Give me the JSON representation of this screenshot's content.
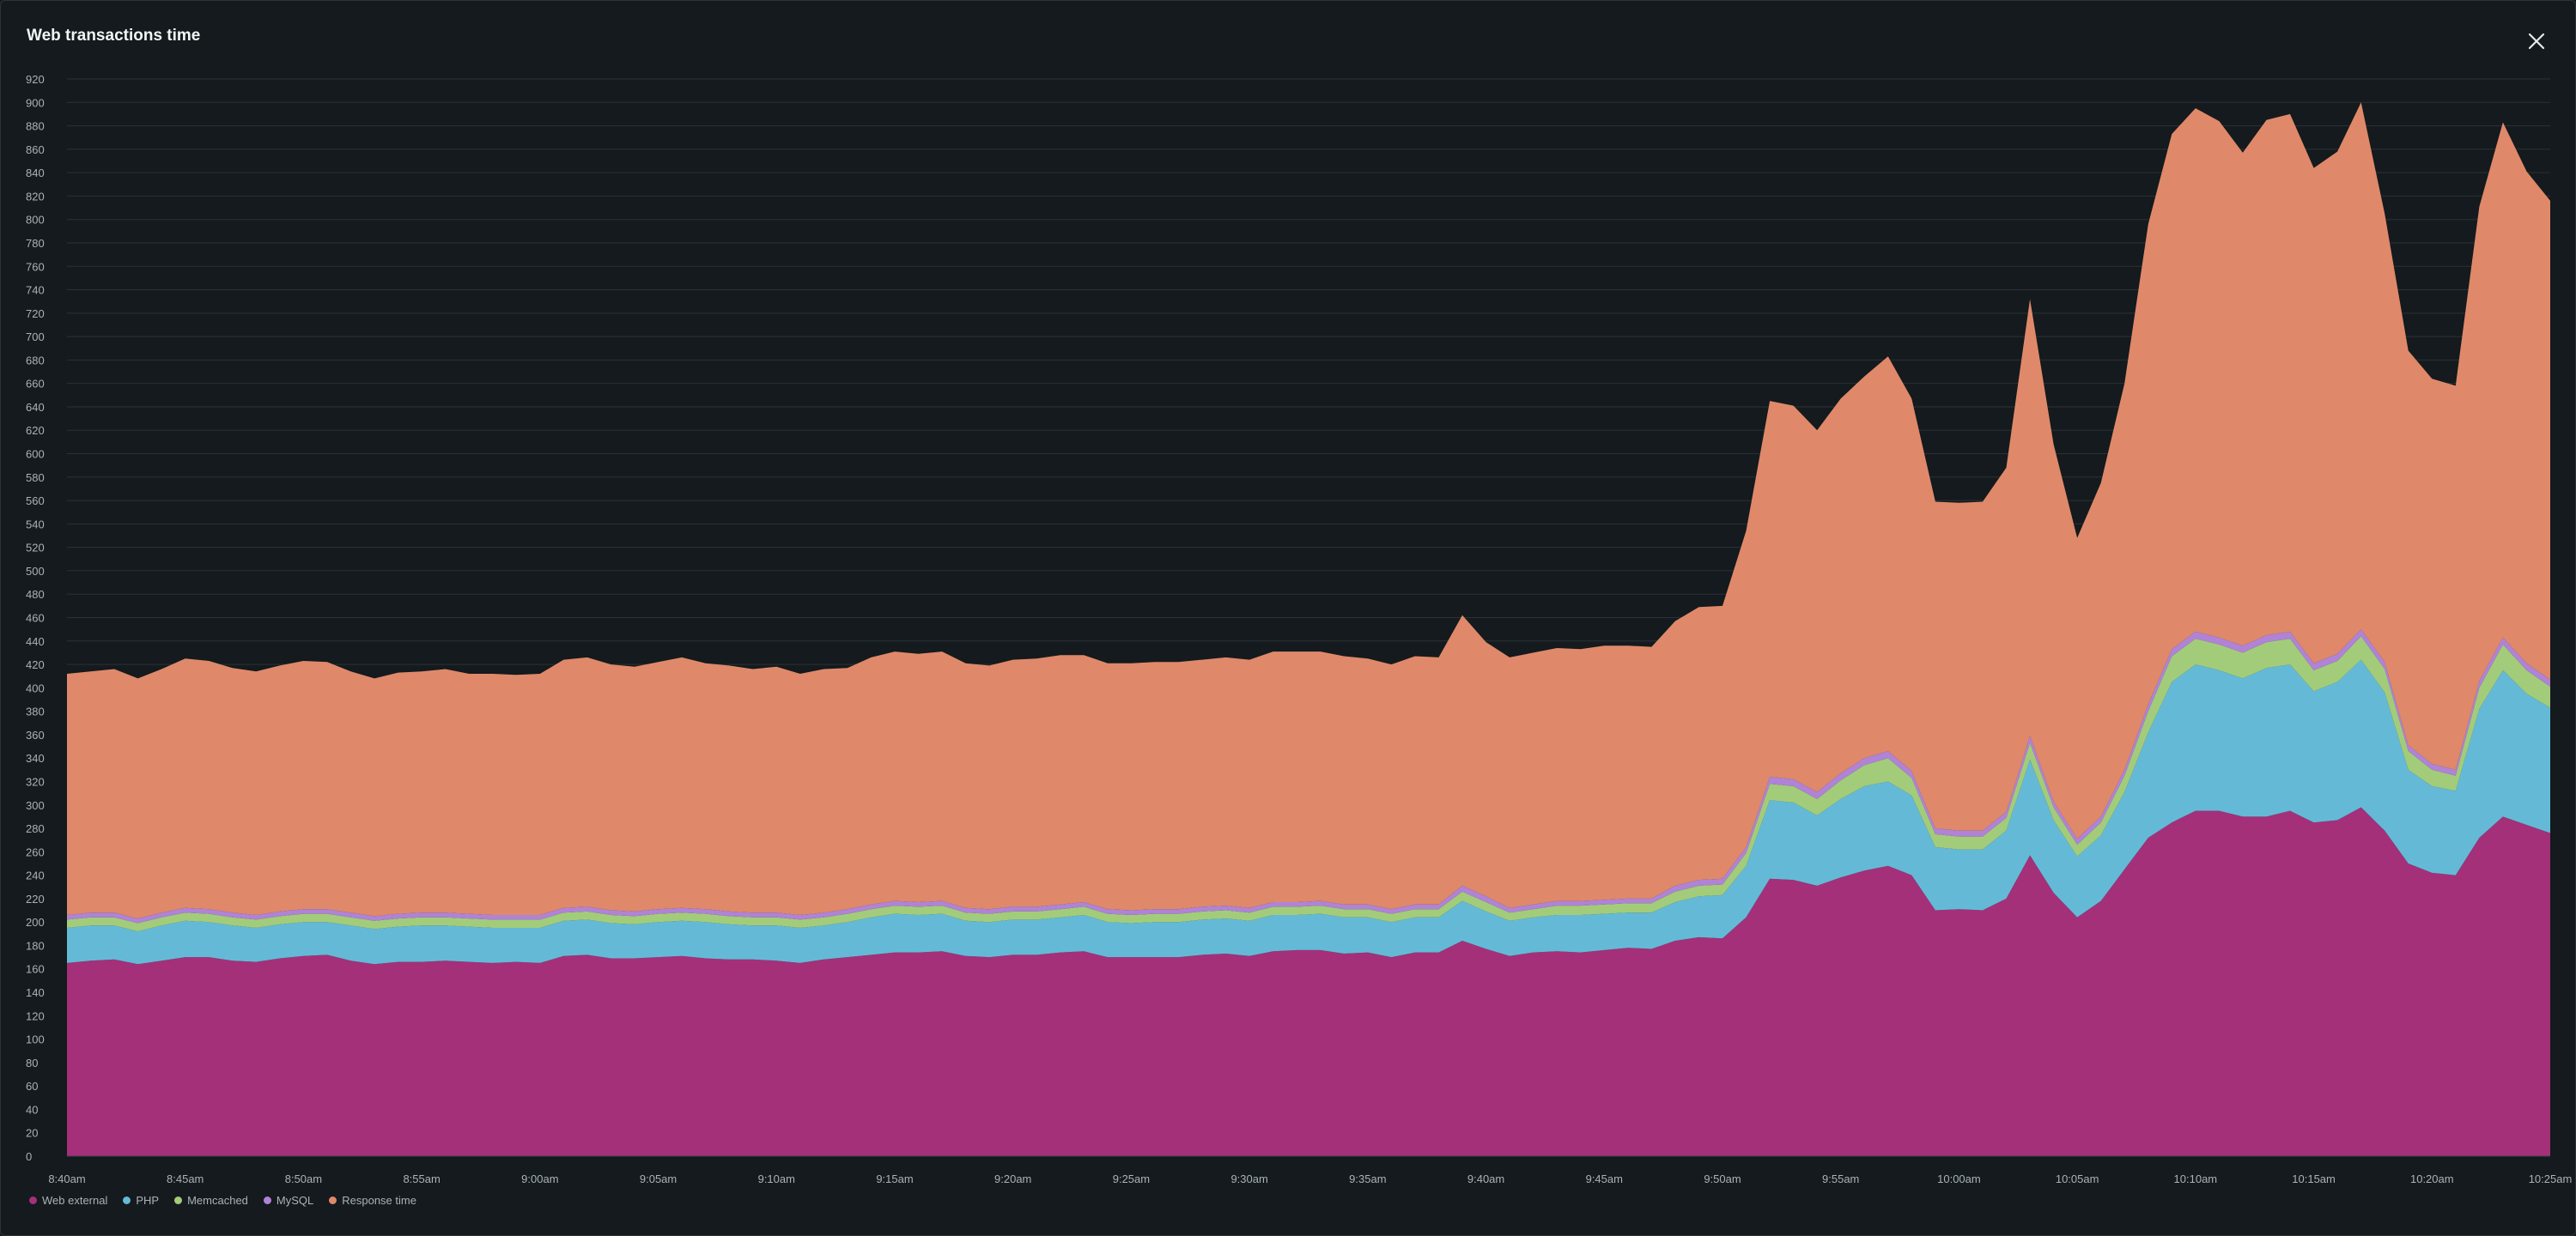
{
  "window": {
    "title": "Web transactions time"
  },
  "close_icon": "close-icon",
  "colors": {
    "background": "#141a1d",
    "grid": "#2b3236",
    "axis_text": "#aab3b7",
    "web_external": "#a4307a",
    "php": "#64bad6",
    "memcached": "#a3cc7a",
    "mysql": "#b083d6",
    "response_time": "#df896a"
  },
  "chart_data": {
    "type": "area",
    "stacked": true,
    "title": "Web transactions time",
    "xlabel": "",
    "ylabel": "",
    "ylim": [
      0,
      920
    ],
    "y_ticks": [
      0,
      20,
      40,
      60,
      80,
      100,
      120,
      140,
      160,
      180,
      200,
      220,
      240,
      260,
      280,
      300,
      320,
      340,
      360,
      380,
      400,
      420,
      440,
      460,
      480,
      500,
      520,
      540,
      560,
      580,
      600,
      620,
      640,
      660,
      680,
      700,
      720,
      740,
      760,
      780,
      800,
      820,
      840,
      860,
      880,
      900,
      920
    ],
    "x_start_minutes": 0,
    "x_step_minutes": 1,
    "x_ticks": [
      {
        "label": "8:40am",
        "minute": 0
      },
      {
        "label": "8:45am",
        "minute": 5
      },
      {
        "label": "8:50am",
        "minute": 10
      },
      {
        "label": "8:55am",
        "minute": 15
      },
      {
        "label": "9:00am",
        "minute": 20
      },
      {
        "label": "9:05am",
        "minute": 25
      },
      {
        "label": "9:10am",
        "minute": 30
      },
      {
        "label": "9:15am",
        "minute": 35
      },
      {
        "label": "9:20am",
        "minute": 40
      },
      {
        "label": "9:25am",
        "minute": 45
      },
      {
        "label": "9:30am",
        "minute": 50
      },
      {
        "label": "9:35am",
        "minute": 55
      },
      {
        "label": "9:40am",
        "minute": 60
      },
      {
        "label": "9:45am",
        "minute": 65
      },
      {
        "label": "9:50am",
        "minute": 70
      },
      {
        "label": "9:55am",
        "minute": 75
      },
      {
        "label": "10:00am",
        "minute": 80
      },
      {
        "label": "10:05am",
        "minute": 85
      },
      {
        "label": "10:10am",
        "minute": 90
      },
      {
        "label": "10:15am",
        "minute": 95
      },
      {
        "label": "10:20am",
        "minute": 100
      },
      {
        "label": "10:25am",
        "minute": 105
      }
    ],
    "legend_position": "bottom-left",
    "series": [
      {
        "name": "Web external",
        "color": "#a4307a",
        "values": [
          165,
          167,
          168,
          164,
          167,
          170,
          170,
          167,
          166,
          169,
          171,
          172,
          167,
          164,
          166,
          166,
          167,
          166,
          165,
          166,
          165,
          171,
          172,
          169,
          169,
          170,
          171,
          169,
          168,
          168,
          167,
          165,
          168,
          170,
          172,
          174,
          174,
          175,
          171,
          170,
          172,
          172,
          174,
          175,
          170,
          170,
          170,
          170,
          172,
          173,
          171,
          175,
          176,
          176,
          173,
          174,
          170,
          174,
          174,
          184,
          177,
          171,
          174,
          175,
          174,
          176,
          178,
          177,
          184,
          187,
          186,
          204,
          237,
          236,
          231,
          238,
          244,
          248,
          240,
          210,
          211,
          210,
          220,
          257,
          225,
          204,
          218,
          245,
          272,
          285,
          295,
          295,
          290,
          290,
          295,
          285,
          287,
          298,
          278,
          250,
          242,
          240,
          272,
          290,
          283,
          276
        ]
      },
      {
        "name": "PHP",
        "color": "#64bad6",
        "values": [
          30,
          30,
          29,
          28,
          30,
          31,
          30,
          30,
          29,
          29,
          29,
          28,
          30,
          30,
          30,
          31,
          30,
          30,
          30,
          29,
          30,
          30,
          30,
          30,
          29,
          30,
          30,
          31,
          30,
          29,
          30,
          30,
          29,
          30,
          32,
          33,
          32,
          32,
          30,
          30,
          30,
          30,
          30,
          31,
          30,
          29,
          30,
          30,
          30,
          30,
          30,
          31,
          30,
          31,
          31,
          30,
          30,
          30,
          30,
          34,
          32,
          30,
          30,
          31,
          32,
          31,
          30,
          31,
          33,
          35,
          37,
          44,
          67,
          66,
          60,
          67,
          72,
          72,
          68,
          54,
          51,
          52,
          58,
          82,
          62,
          52,
          56,
          66,
          90,
          120,
          125,
          120,
          118,
          127,
          125,
          112,
          118,
          126,
          118,
          80,
          74,
          72,
          110,
          125,
          112,
          107
        ]
      },
      {
        "name": "Memcached",
        "color": "#a3cc7a",
        "values": [
          7,
          7,
          7,
          7,
          7,
          7,
          7,
          7,
          7,
          7,
          7,
          7,
          7,
          7,
          7,
          7,
          7,
          7,
          7,
          7,
          7,
          7,
          7,
          7,
          7,
          7,
          7,
          7,
          7,
          7,
          7,
          7,
          7,
          7,
          7,
          7,
          7,
          7,
          7,
          7,
          7,
          7,
          7,
          7,
          7,
          7,
          7,
          7,
          7,
          7,
          7,
          7,
          7,
          7,
          7,
          7,
          7,
          7,
          7,
          8,
          8,
          7,
          7,
          8,
          8,
          8,
          8,
          8,
          9,
          9,
          9,
          11,
          14,
          14,
          14,
          16,
          18,
          20,
          15,
          11,
          11,
          11,
          11,
          14,
          11,
          10,
          11,
          14,
          18,
          22,
          22,
          22,
          22,
          22,
          22,
          18,
          18,
          20,
          20,
          16,
          14,
          13,
          18,
          22,
          20,
          18
        ]
      },
      {
        "name": "MySQL",
        "color": "#b083d6",
        "values": [
          4,
          4,
          4,
          4,
          4,
          4,
          4,
          4,
          4,
          4,
          4,
          4,
          4,
          4,
          4,
          4,
          4,
          4,
          4,
          4,
          4,
          4,
          4,
          4,
          4,
          4,
          4,
          4,
          4,
          4,
          4,
          4,
          4,
          4,
          4,
          4,
          4,
          4,
          4,
          4,
          4,
          4,
          4,
          4,
          4,
          4,
          4,
          4,
          4,
          4,
          4,
          4,
          4,
          4,
          4,
          4,
          4,
          4,
          4,
          5,
          5,
          4,
          4,
          4,
          4,
          4,
          4,
          4,
          5,
          5,
          5,
          5,
          6,
          6,
          6,
          6,
          6,
          6,
          6,
          5,
          5,
          5,
          5,
          6,
          5,
          5,
          5,
          5,
          6,
          6,
          6,
          6,
          6,
          6,
          6,
          6,
          6,
          6,
          6,
          5,
          5,
          5,
          6,
          6,
          6,
          6
        ]
      },
      {
        "name": "Response time",
        "color": "#df896a",
        "values": [
          206,
          206,
          208,
          205,
          208,
          213,
          212,
          209,
          208,
          210,
          212,
          211,
          206,
          203,
          206,
          206,
          208,
          205,
          206,
          205,
          206,
          212,
          213,
          210,
          209,
          211,
          214,
          210,
          210,
          208,
          210,
          206,
          208,
          206,
          211,
          213,
          212,
          213,
          209,
          208,
          211,
          212,
          213,
          211,
          210,
          211,
          211,
          211,
          211,
          212,
          212,
          214,
          214,
          213,
          212,
          210,
          209,
          212,
          211,
          231,
          217,
          214,
          215,
          216,
          215,
          217,
          216,
          215,
          226,
          233,
          233,
          270,
          321,
          319,
          309,
          320,
          326,
          337,
          318,
          279,
          280,
          281,
          294,
          373,
          305,
          257,
          285,
          330,
          410,
          440,
          447,
          441,
          421,
          440,
          442,
          423,
          429,
          450,
          383,
          337,
          329,
          328,
          405,
          440,
          420,
          409
        ]
      }
    ]
  },
  "legend": {
    "items": [
      {
        "label": "Web external",
        "color": "#a4307a"
      },
      {
        "label": "PHP",
        "color": "#64bad6"
      },
      {
        "label": "Memcached",
        "color": "#a3cc7a"
      },
      {
        "label": "MySQL",
        "color": "#b083d6"
      },
      {
        "label": "Response time",
        "color": "#df896a"
      }
    ]
  }
}
